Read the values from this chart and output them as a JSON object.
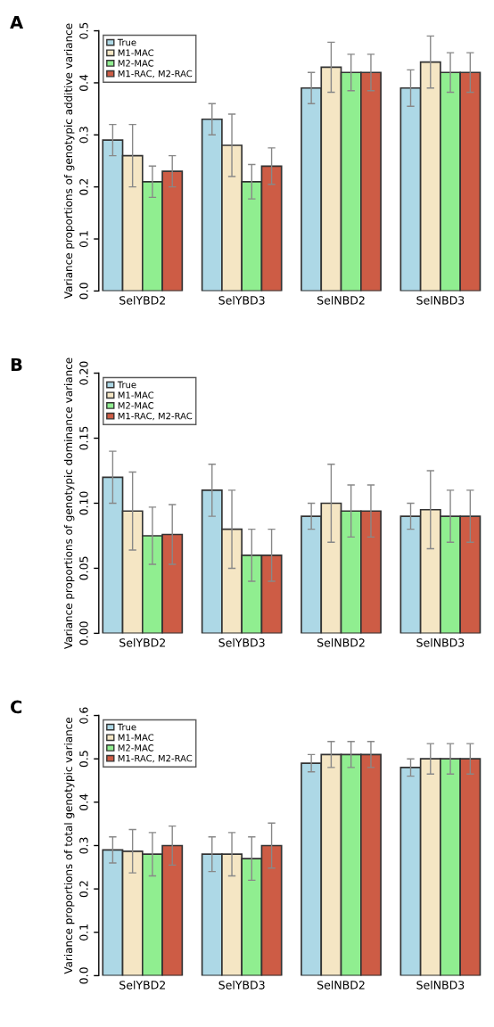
{
  "chart_data": [
    {
      "type": "bar",
      "title": "A",
      "ylabel": "Variance proportions of genotypic additive variance",
      "categories": [
        "SelYBD2",
        "SelYBD3",
        "SelNBD2",
        "SelNBD3"
      ],
      "ylim": [
        0,
        0.5
      ],
      "yticks": [
        {
          "value": 0,
          "label": "0.0"
        },
        0.1,
        0.2,
        0.3,
        0.4,
        0.5
      ],
      "legend": "top left",
      "grid": false,
      "series": [
        {
          "name": "True",
          "color": "#add8e6",
          "values": [
            0.29,
            0.33,
            0.39,
            0.39
          ],
          "errors": [
            0.03,
            0.03,
            0.03,
            0.035
          ]
        },
        {
          "name": "M1-MAC",
          "color": "#f5e6c4",
          "values": [
            0.26,
            0.28,
            0.43,
            0.44
          ],
          "errors": [
            0.06,
            0.06,
            0.048,
            0.05
          ]
        },
        {
          "name": "M2-MAC",
          "color": "#90ee90",
          "values": [
            0.21,
            0.21,
            0.42,
            0.42
          ],
          "errors": [
            0.03,
            0.033,
            0.035,
            0.038
          ]
        },
        {
          "name": "M1-RAC, M2-RAC",
          "color": "#cd5c45",
          "values": [
            0.23,
            0.24,
            0.42,
            0.42
          ],
          "errors": [
            0.03,
            0.035,
            0.035,
            0.038
          ]
        }
      ]
    },
    {
      "type": "bar",
      "title": "B",
      "ylabel": "Variance proportions of genotypic dominance variance",
      "categories": [
        "SelYBD2",
        "SelYBD3",
        "SelNBD2",
        "SelNBD3"
      ],
      "ylim": [
        0,
        0.2
      ],
      "yticks": [
        {
          "value": 0,
          "label": "0.00"
        },
        0.05,
        {
          "value": 0.1,
          "label": "0.10"
        },
        0.15,
        {
          "value": 0.2,
          "label": "0.20"
        }
      ],
      "legend": "top left",
      "grid": false,
      "series": [
        {
          "name": "True",
          "color": "#add8e6",
          "values": [
            0.12,
            0.11,
            0.09,
            0.09
          ],
          "errors": [
            0.02,
            0.02,
            0.01,
            0.01
          ]
        },
        {
          "name": "M1-MAC",
          "color": "#f5e6c4",
          "values": [
            0.094,
            0.08,
            0.1,
            0.095
          ],
          "errors": [
            0.03,
            0.03,
            0.03,
            0.03
          ]
        },
        {
          "name": "M2-MAC",
          "color": "#90ee90",
          "values": [
            0.075,
            0.06,
            0.094,
            0.09
          ],
          "errors": [
            0.022,
            0.02,
            0.02,
            0.02
          ]
        },
        {
          "name": "M1-RAC, M2-RAC",
          "color": "#cd5c45",
          "values": [
            0.076,
            0.06,
            0.094,
            0.09
          ],
          "errors": [
            0.023,
            0.02,
            0.02,
            0.02
          ]
        }
      ]
    },
    {
      "type": "bar",
      "title": "C",
      "ylabel": "Variance proportions of total genotypic variance",
      "categories": [
        "SelYBD2",
        "SelYBD3",
        "SelNBD2",
        "SelNBD3"
      ],
      "ylim": [
        0,
        0.6
      ],
      "yticks": [
        {
          "value": 0,
          "label": "0.0"
        },
        0.1,
        0.2,
        0.3,
        0.4,
        0.5,
        0.6
      ],
      "legend": "top left",
      "grid": false,
      "series": [
        {
          "name": "True",
          "color": "#add8e6",
          "values": [
            0.29,
            0.28,
            0.49,
            0.48
          ],
          "errors": [
            0.03,
            0.04,
            0.02,
            0.02
          ]
        },
        {
          "name": "M1-MAC",
          "color": "#f5e6c4",
          "values": [
            0.287,
            0.28,
            0.51,
            0.5
          ],
          "errors": [
            0.05,
            0.05,
            0.03,
            0.035
          ]
        },
        {
          "name": "M2-MAC",
          "color": "#90ee90",
          "values": [
            0.28,
            0.27,
            0.51,
            0.5
          ],
          "errors": [
            0.05,
            0.05,
            0.03,
            0.035
          ]
        },
        {
          "name": "M1-RAC, M2-RAC",
          "color": "#cd5c45",
          "values": [
            0.3,
            0.3,
            0.51,
            0.5
          ],
          "errors": [
            0.045,
            0.052,
            0.03,
            0.035
          ]
        }
      ]
    }
  ]
}
